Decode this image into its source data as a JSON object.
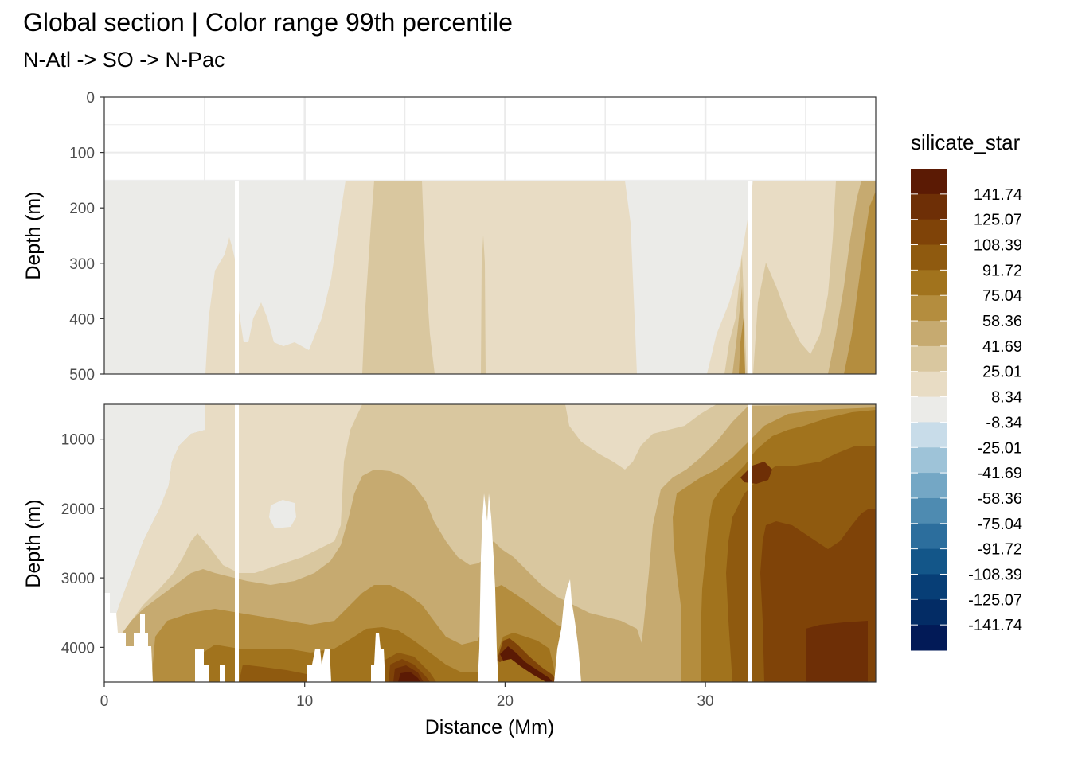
{
  "chart_data": {
    "type": "heatmap",
    "title": "Global section | Color range 99th percentile",
    "subtitle": "N-Atl -> SO -> N-Pac",
    "xlabel": "Distance (Mm)",
    "ylabel": "Depth (m)",
    "x_ticks": [
      "0",
      "10",
      "20",
      "30"
    ],
    "x_tick_values": [
      0,
      10,
      20,
      30
    ],
    "xlim": [
      0,
      38.5
    ],
    "panels": [
      {
        "name": "upper",
        "ylim": [
          0,
          500
        ],
        "y_ticks": [
          "0",
          "100",
          "200",
          "300",
          "400",
          "500"
        ],
        "y_tick_values": [
          0,
          100,
          200,
          300,
          400,
          500
        ],
        "data_top_depth": 150,
        "reversed": true
      },
      {
        "name": "lower",
        "ylim": [
          500,
          4500
        ],
        "y_ticks": [
          "1000",
          "2000",
          "3000",
          "4000"
        ],
        "y_tick_values": [
          1000,
          2000,
          3000,
          4000
        ],
        "reversed": true
      }
    ],
    "legend": {
      "title": "silicate_star",
      "placement": "right",
      "breaks": [
        "141.74",
        "125.07",
        "108.39",
        "91.72",
        "75.04",
        "58.36",
        "41.69",
        "25.01",
        "8.34",
        "-8.34",
        "-25.01",
        "-41.69",
        "-58.36",
        "-75.04",
        "-91.72",
        "-108.39",
        "-125.07",
        "-141.74"
      ],
      "colors": [
        "#5b1a04",
        "#6e2f06",
        "#7f4308",
        "#8f5a0f",
        "#a1731d",
        "#b48d3e",
        "#c6aa70",
        "#d9c79f",
        "#e8dcc4",
        "#ebebe8",
        "#c8dce9",
        "#9ec3d8",
        "#74a7c5",
        "#4e8bb1",
        "#2c6e9d",
        "#135689",
        "#073e76",
        "#032c65",
        "#021a57"
      ]
    },
    "grid": true
  }
}
